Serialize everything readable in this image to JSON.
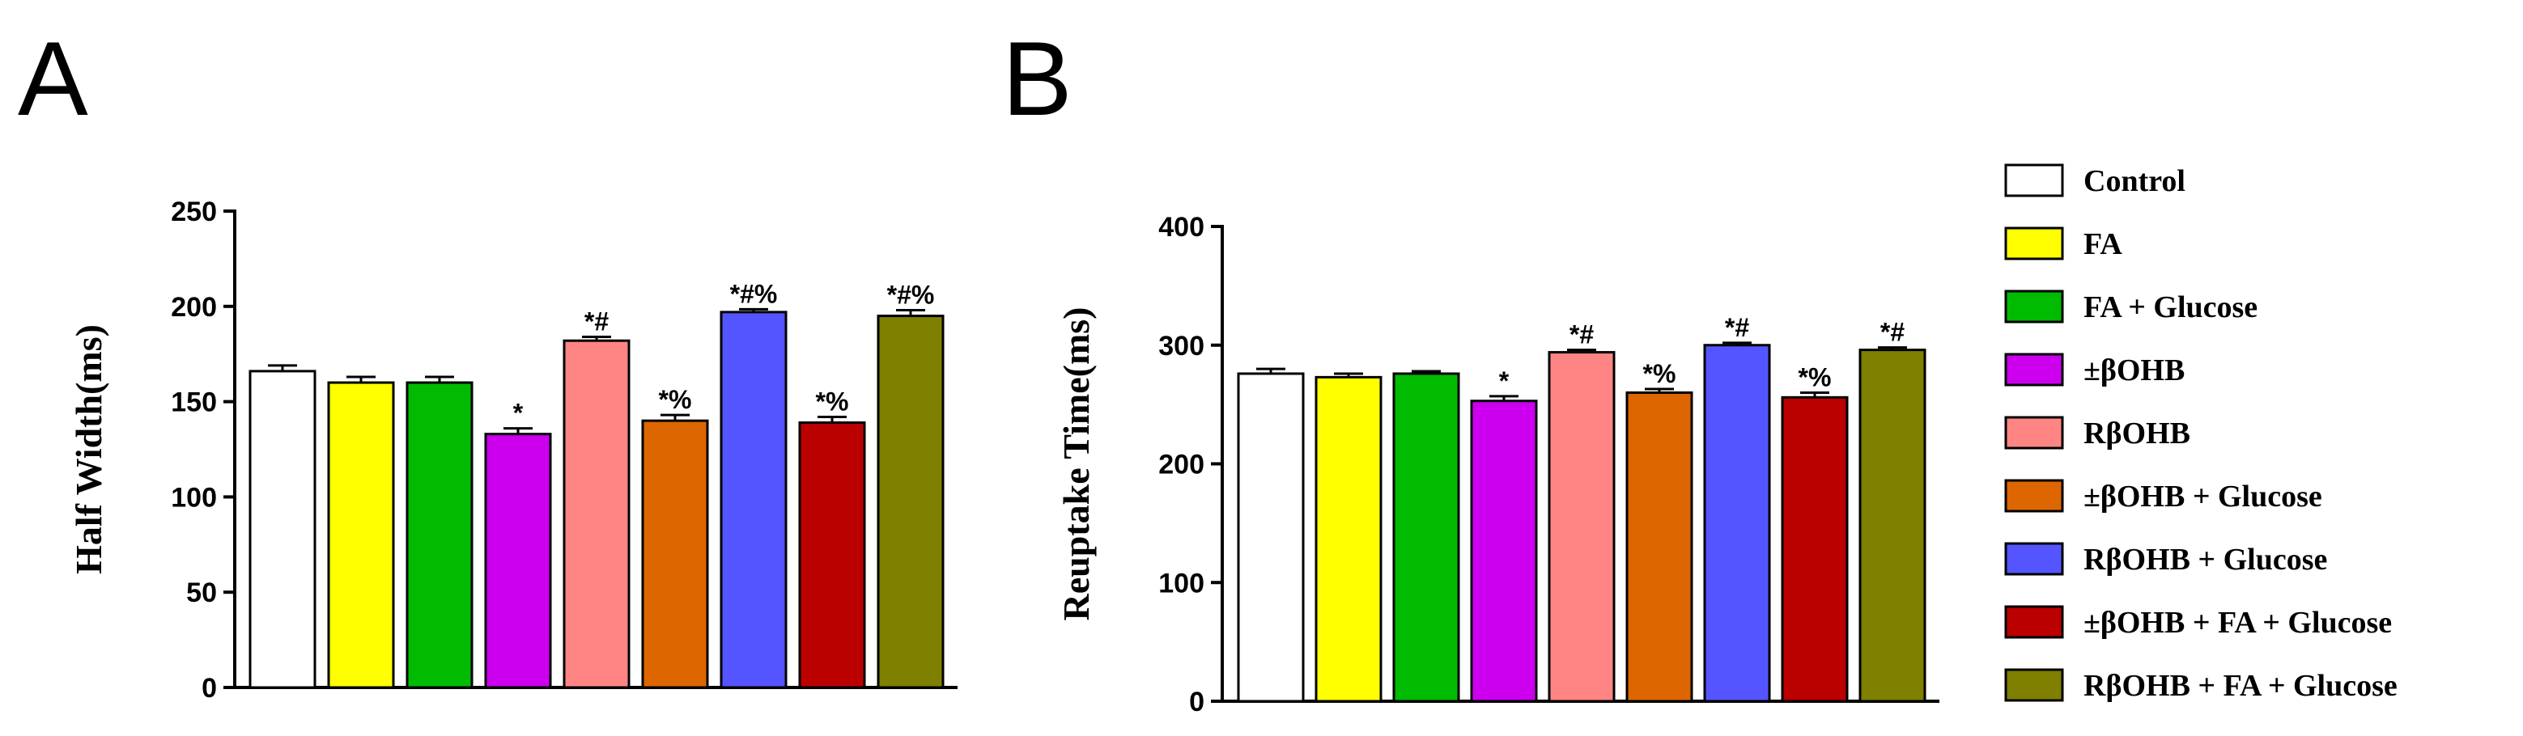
{
  "legend": {
    "items": [
      {
        "label": "Control",
        "color": "#ffffff"
      },
      {
        "label": "FA",
        "color": "#ffff00"
      },
      {
        "label": "FA + Glucose",
        "color": "#00bb00"
      },
      {
        "label": "±βOHB",
        "color": "#cc00ee"
      },
      {
        "label": "RβOHB",
        "color": "#ff8585"
      },
      {
        "label": "±βOHB + Glucose",
        "color": "#dd6600"
      },
      {
        "label": "RβOHB + Glucose",
        "color": "#5555ff"
      },
      {
        "label": "±βOHB + FA + Glucose",
        "color": "#bb0000"
      },
      {
        "label": "RβOHB + FA + Glucose",
        "color": "#7f7f00"
      }
    ]
  },
  "chart_data": [
    {
      "panel": "A",
      "type": "bar",
      "ylabel": "Half Width(ms)",
      "xlabel": "",
      "ylim": [
        0,
        250
      ],
      "yticks": [
        0,
        50,
        100,
        150,
        200,
        250
      ],
      "categories": [
        "Control",
        "FA",
        "FA + Glucose",
        "±βOHB",
        "RβOHB",
        "±βOHB + Glucose",
        "RβOHB + Glucose",
        "±βOHB + FA + Glucose",
        "RβOHB + FA + Glucose"
      ],
      "values": [
        166,
        160,
        160,
        133,
        182,
        140,
        197,
        139,
        195
      ],
      "errors": [
        3,
        3,
        3,
        3,
        2,
        3,
        1.5,
        3,
        3
      ],
      "annotations": [
        "",
        "",
        "",
        "*",
        "*#",
        "*%",
        "*#%",
        "*%",
        "*#%"
      ]
    },
    {
      "panel": "B",
      "type": "bar",
      "ylabel": "Reuptake Time(ms)",
      "xlabel": "",
      "ylim": [
        0,
        400
      ],
      "yticks": [
        0,
        100,
        200,
        300,
        400
      ],
      "categories": [
        "Control",
        "FA",
        "FA + Glucose",
        "±βOHB",
        "RβOHB",
        "±βOHB + Glucose",
        "RβOHB + Glucose",
        "±βOHB + FA + Glucose",
        "RβOHB + FA + Glucose"
      ],
      "values": [
        276,
        273,
        276,
        253,
        294,
        260,
        300,
        256,
        296
      ],
      "errors": [
        4,
        3,
        2,
        4,
        2,
        3,
        2,
        4,
        2
      ],
      "annotations": [
        "",
        "",
        "",
        "*",
        "*#",
        "*%",
        "*#",
        "*%",
        "*#"
      ]
    }
  ]
}
